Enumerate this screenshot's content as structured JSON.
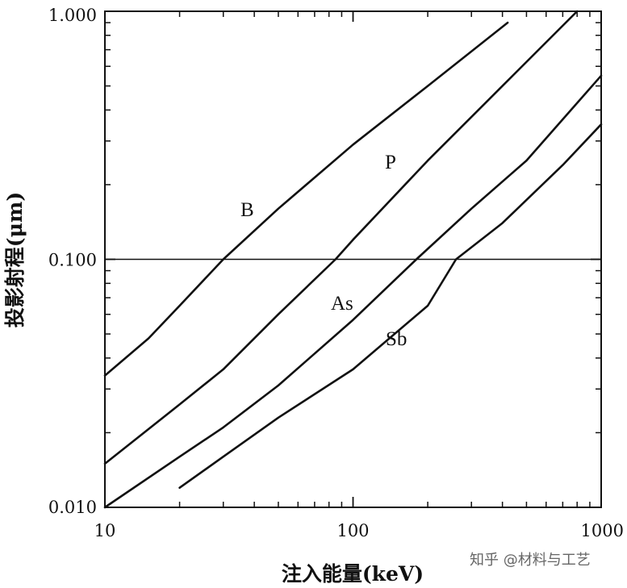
{
  "chart_data": {
    "type": "line",
    "xlabel": "注入能量(keV)",
    "ylabel": "投影射程(μm)",
    "x_scale": "log",
    "y_scale": "log",
    "xlim": [
      10,
      1000
    ],
    "ylim": [
      0.01,
      1.0
    ],
    "x_ticks": [
      {
        "value": 10,
        "label": "10"
      },
      {
        "value": 100,
        "label": "100"
      },
      {
        "value": 1000,
        "label": "1000"
      }
    ],
    "y_ticks": [
      {
        "value": 0.01,
        "label": "0.010"
      },
      {
        "value": 0.1,
        "label": "0.100"
      },
      {
        "value": 1.0,
        "label": "1.000"
      }
    ],
    "grid": false,
    "reference_line_y": 0.1,
    "series": [
      {
        "name": "B",
        "x": [
          10,
          15,
          20,
          30,
          50,
          100,
          200,
          420
        ],
        "y": [
          0.034,
          0.048,
          0.065,
          0.1,
          0.16,
          0.29,
          0.5,
          0.9
        ]
      },
      {
        "name": "P",
        "x": [
          10,
          20,
          30,
          50,
          85,
          100,
          200,
          400,
          800
        ],
        "y": [
          0.015,
          0.026,
          0.036,
          0.06,
          0.1,
          0.12,
          0.25,
          0.5,
          1.0
        ]
      },
      {
        "name": "As",
        "x": [
          10,
          20,
          30,
          50,
          100,
          180,
          300,
          500,
          1000
        ],
        "y": [
          0.01,
          0.016,
          0.021,
          0.031,
          0.057,
          0.1,
          0.16,
          0.25,
          0.55
        ]
      },
      {
        "name": "Sb",
        "x": [
          20,
          30,
          50,
          100,
          200,
          260,
          400,
          700,
          1000
        ],
        "y": [
          0.012,
          0.016,
          0.023,
          0.036,
          0.065,
          0.1,
          0.14,
          0.24,
          0.35
        ]
      }
    ]
  },
  "watermark": "知乎 @材料与工艺"
}
